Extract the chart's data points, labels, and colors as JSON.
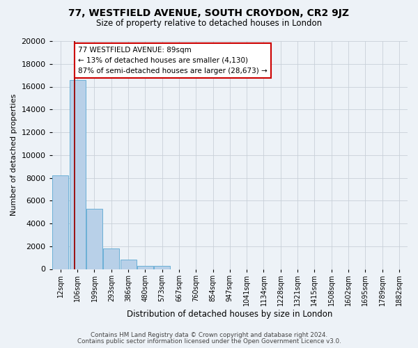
{
  "title": "77, WESTFIELD AVENUE, SOUTH CROYDON, CR2 9JZ",
  "subtitle": "Size of property relative to detached houses in London",
  "xlabel": "Distribution of detached houses by size in London",
  "ylabel": "Number of detached properties",
  "footnote1": "Contains HM Land Registry data © Crown copyright and database right 2024.",
  "footnote2": "Contains public sector information licensed under the Open Government Licence v3.0.",
  "bar_labels": [
    "12sqm",
    "106sqm",
    "199sqm",
    "293sqm",
    "386sqm",
    "480sqm",
    "573sqm",
    "667sqm",
    "760sqm",
    "854sqm",
    "947sqm",
    "1041sqm",
    "1134sqm",
    "1228sqm",
    "1321sqm",
    "1415sqm",
    "1508sqm",
    "1602sqm",
    "1695sqm",
    "1789sqm",
    "1882sqm"
  ],
  "bar_values": [
    8200,
    16600,
    5300,
    1800,
    800,
    300,
    270,
    0,
    0,
    0,
    0,
    0,
    0,
    0,
    0,
    0,
    0,
    0,
    0,
    0,
    0
  ],
  "bar_color": "#b8d0e8",
  "bar_edge_color": "#6aafd6",
  "ylim": [
    0,
    20000
  ],
  "yticks": [
    0,
    2000,
    4000,
    6000,
    8000,
    10000,
    12000,
    14000,
    16000,
    18000,
    20000
  ],
  "property_line_color": "#990000",
  "annotation_title": "77 WESTFIELD AVENUE: 89sqm",
  "annotation_line1": "← 13% of detached houses are smaller (4,130)",
  "annotation_line2": "87% of semi-detached houses are larger (28,673) →",
  "annotation_box_color": "#ffffff",
  "annotation_box_edge": "#cc0000",
  "background_color": "#edf2f7",
  "grid_color": "#c8d0d8"
}
